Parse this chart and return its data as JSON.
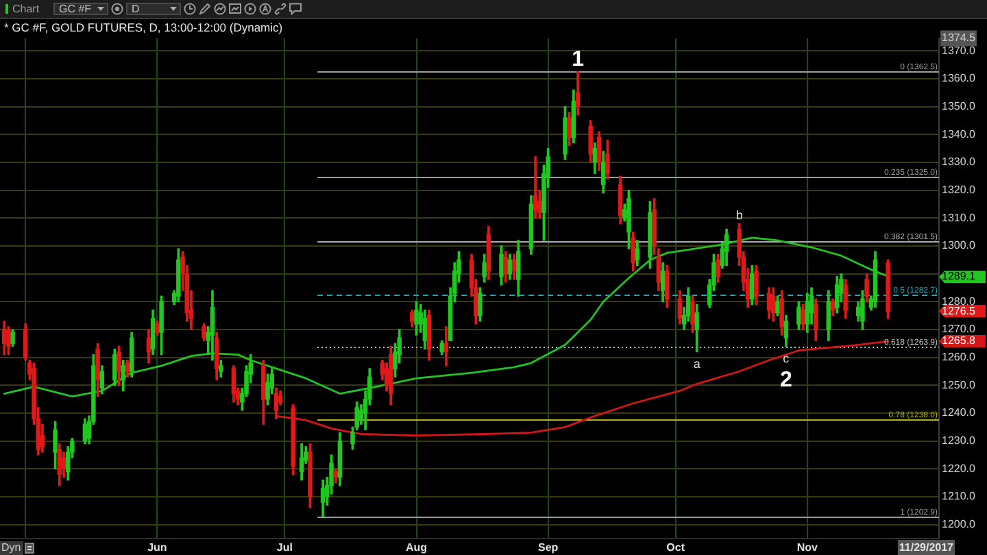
{
  "chart_data": {
    "type": "candlestick",
    "title": "* GC #F, GOLD FUTURES, D, 13:00-12:00 (Dynamic)",
    "x": [
      "2017-04-26",
      "2017-04-27",
      "2017-04-28",
      "2017-05-01",
      "2017-05-02",
      "2017-05-03",
      "2017-05-04",
      "2017-05-05",
      "2017-05-08",
      "2017-05-09",
      "2017-05-10",
      "2017-05-11",
      "2017-05-12",
      "2017-05-15",
      "2017-05-16",
      "2017-05-17",
      "2017-05-18",
      "2017-05-19",
      "2017-05-22",
      "2017-05-23",
      "2017-05-24",
      "2017-05-25",
      "2017-05-26",
      "2017-05-30",
      "2017-05-31",
      "2017-06-01",
      "2017-06-02",
      "2017-06-05",
      "2017-06-06",
      "2017-06-07",
      "2017-06-08",
      "2017-06-09",
      "2017-06-12",
      "2017-06-13",
      "2017-06-14",
      "2017-06-15",
      "2017-06-16",
      "2017-06-19",
      "2017-06-20",
      "2017-06-21",
      "2017-06-22",
      "2017-06-23",
      "2017-06-26",
      "2017-06-27",
      "2017-06-28",
      "2017-06-29",
      "2017-06-30",
      "2017-07-03",
      "2017-07-05",
      "2017-07-06",
      "2017-07-07",
      "2017-07-10",
      "2017-07-11",
      "2017-07-12",
      "2017-07-13",
      "2017-07-14",
      "2017-07-17",
      "2017-07-18",
      "2017-07-19",
      "2017-07-20",
      "2017-07-21",
      "2017-07-24",
      "2017-07-25",
      "2017-07-26",
      "2017-07-27",
      "2017-07-28",
      "2017-07-31",
      "2017-08-01",
      "2017-08-02",
      "2017-08-03",
      "2017-08-04",
      "2017-08-07",
      "2017-08-08",
      "2017-08-09",
      "2017-08-10",
      "2017-08-11",
      "2017-08-14",
      "2017-08-15",
      "2017-08-16",
      "2017-08-17",
      "2017-08-18",
      "2017-08-21",
      "2017-08-22",
      "2017-08-23",
      "2017-08-24",
      "2017-08-25",
      "2017-08-28",
      "2017-08-29",
      "2017-08-30",
      "2017-08-31",
      "2017-09-01",
      "2017-09-05",
      "2017-09-06",
      "2017-09-07",
      "2017-09-08",
      "2017-09-11",
      "2017-09-12",
      "2017-09-13",
      "2017-09-14",
      "2017-09-15",
      "2017-09-18",
      "2017-09-19",
      "2017-09-20",
      "2017-09-21",
      "2017-09-22",
      "2017-09-25",
      "2017-09-26",
      "2017-09-27",
      "2017-09-28",
      "2017-09-29",
      "2017-10-02",
      "2017-10-03",
      "2017-10-04",
      "2017-10-05",
      "2017-10-06",
      "2017-10-09",
      "2017-10-10",
      "2017-10-11",
      "2017-10-12",
      "2017-10-13",
      "2017-10-16",
      "2017-10-17",
      "2017-10-18",
      "2017-10-19",
      "2017-10-20",
      "2017-10-23",
      "2017-10-24",
      "2017-10-25",
      "2017-10-26",
      "2017-10-27",
      "2017-10-30",
      "2017-10-31",
      "2017-11-01",
      "2017-11-02",
      "2017-11-03",
      "2017-11-06",
      "2017-11-07",
      "2017-11-08",
      "2017-11-09",
      "2017-11-10",
      "2017-11-13",
      "2017-11-14",
      "2017-11-15",
      "2017-11-16",
      "2017-11-17",
      "2017-11-20"
    ],
    "series": [
      {
        "ohlc": [
          [
            1270,
            1273,
            1261,
            1265
          ],
          [
            1270,
            1271,
            1261,
            1264
          ],
          [
            1265,
            1270,
            1264,
            1269
          ],
          [
            1270,
            1272,
            1259,
            1260
          ],
          [
            1258,
            1259,
            1252,
            1254
          ],
          [
            1256,
            1258,
            1236,
            1238
          ],
          [
            1238,
            1242,
            1225,
            1227
          ],
          [
            1232,
            1236,
            1226,
            1228
          ],
          [
            1226,
            1237,
            1220,
            1234
          ],
          [
            1227,
            1229,
            1214,
            1218
          ],
          [
            1224,
            1226,
            1217,
            1220
          ],
          [
            1219,
            1228,
            1216,
            1226
          ],
          [
            1226,
            1231,
            1224,
            1230
          ],
          [
            1230,
            1238,
            1229,
            1236
          ],
          [
            1231,
            1239,
            1229,
            1237
          ],
          [
            1237,
            1261,
            1236,
            1257
          ],
          [
            1263,
            1265,
            1246,
            1252
          ],
          [
            1249,
            1257,
            1247,
            1255
          ],
          [
            1252,
            1263,
            1250,
            1261
          ],
          [
            1262,
            1264,
            1250,
            1255
          ],
          [
            1252,
            1259,
            1248,
            1257
          ],
          [
            1258,
            1259,
            1253,
            1255
          ],
          [
            1255,
            1269,
            1253,
            1267
          ],
          [
            1267,
            1270,
            1258,
            1262
          ],
          [
            1263,
            1277,
            1261,
            1274
          ],
          [
            1272,
            1273,
            1268,
            1269
          ],
          [
            1269,
            1282,
            1261,
            1280
          ],
          [
            1280,
            1284,
            1279,
            1283
          ],
          [
            1282,
            1299,
            1280,
            1295
          ],
          [
            1296,
            1298,
            1284,
            1290
          ],
          [
            1290,
            1293,
            1273,
            1276
          ],
          [
            1277,
            1284,
            1270,
            1274
          ],
          [
            1271,
            1272,
            1266,
            1267
          ],
          [
            1266,
            1271,
            1261,
            1269
          ],
          [
            1268,
            1284,
            1259,
            1278
          ],
          [
            1267,
            1269,
            1252,
            1256
          ],
          [
            1255,
            1259,
            1253,
            1257
          ],
          [
            1256,
            1257,
            1244,
            1247
          ],
          [
            1248,
            1249,
            1243,
            1245
          ],
          [
            1244,
            1249,
            1241,
            1247
          ],
          [
            1247,
            1257,
            1246,
            1255
          ],
          [
            1254,
            1261,
            1251,
            1258
          ],
          [
            1257,
            1259,
            1236,
            1245
          ],
          [
            1245,
            1254,
            1243,
            1251
          ],
          [
            1249,
            1256,
            1247,
            1254
          ],
          [
            1247,
            1249,
            1238,
            1241
          ],
          [
            1246,
            1248,
            1243,
            1244
          ],
          [
            1242,
            1243,
            1218,
            1221
          ],
          [
            1219,
            1229,
            1216,
            1224
          ],
          [
            1223,
            1228,
            1222,
            1226
          ],
          [
            1226,
            1229,
            1206,
            1210
          ],
          [
            1208,
            1216,
            1202.9,
            1213
          ],
          [
            1210,
            1217,
            1207,
            1214
          ],
          [
            1214,
            1225,
            1211,
            1222
          ],
          [
            1219,
            1220,
            1215,
            1217
          ],
          [
            1217,
            1233,
            1214,
            1230
          ],
          [
            1229,
            1235,
            1227,
            1233
          ],
          [
            1235,
            1244,
            1234,
            1242
          ],
          [
            1238,
            1243,
            1236,
            1241
          ],
          [
            1240,
            1248,
            1234,
            1245
          ],
          [
            1245,
            1256,
            1243,
            1253
          ],
          [
            1258,
            1259,
            1252,
            1254
          ],
          [
            1256,
            1258,
            1248,
            1250
          ],
          [
            1261,
            1264,
            1243,
            1247
          ],
          [
            1256,
            1265,
            1253,
            1262
          ],
          [
            1261,
            1270,
            1258,
            1267
          ],
          [
            1276,
            1277,
            1271,
            1273
          ],
          [
            1272,
            1280,
            1268,
            1277
          ],
          [
            1272,
            1279,
            1269,
            1276
          ],
          [
            1266,
            1277,
            1263,
            1274
          ],
          [
            1275,
            1277,
            1259,
            1263
          ],
          [
            1262,
            1266,
            1261,
            1265
          ],
          [
            1265,
            1271,
            1257,
            1262
          ],
          [
            1266,
            1285,
            1266,
            1282
          ],
          [
            1283,
            1294,
            1280,
            1291
          ],
          [
            1290,
            1298,
            1287,
            1295
          ],
          [
            1295,
            1297,
            1282,
            1285
          ],
          [
            1285,
            1288,
            1272,
            1275
          ],
          [
            1275,
            1285,
            1273,
            1283
          ],
          [
            1289,
            1297,
            1287,
            1294
          ],
          [
            1304,
            1307,
            1288,
            1291
          ],
          [
            1289,
            1300,
            1286,
            1297
          ],
          [
            1296,
            1298,
            1287,
            1290
          ],
          [
            1290,
            1297,
            1288,
            1295
          ],
          [
            1295,
            1297,
            1288,
            1291
          ],
          [
            1288,
            1302,
            1282,
            1298
          ],
          [
            1299,
            1318,
            1297,
            1315
          ],
          [
            1318,
            1332,
            1310,
            1313
          ],
          [
            1316,
            1320,
            1310,
            1312
          ],
          [
            1312,
            1329,
            1302,
            1326
          ],
          [
            1325,
            1335,
            1321,
            1332
          ],
          [
            1333,
            1350,
            1331,
            1346
          ],
          [
            1346,
            1348,
            1336,
            1339
          ],
          [
            1339,
            1356,
            1337,
            1352
          ],
          [
            1355,
            1362.5,
            1347,
            1350
          ],
          [
            1343,
            1345,
            1330,
            1333
          ],
          [
            1330,
            1337,
            1326,
            1335
          ],
          [
            1339,
            1341,
            1327,
            1330
          ],
          [
            1322,
            1334,
            1319,
            1330
          ],
          [
            1333,
            1338,
            1324,
            1326
          ],
          [
            1322,
            1325,
            1308,
            1311
          ],
          [
            1310,
            1315,
            1309,
            1313
          ],
          [
            1305,
            1320,
            1299,
            1317
          ],
          [
            1303,
            1305,
            1291,
            1294
          ],
          [
            1295,
            1302,
            1293,
            1299
          ],
          [
            1296,
            1316,
            1292,
            1312
          ],
          [
            1313,
            1317,
            1297,
            1300
          ],
          [
            1296,
            1299,
            1284,
            1287
          ],
          [
            1284,
            1294,
            1280,
            1291
          ],
          [
            1291,
            1293,
            1278,
            1281
          ],
          [
            1281,
            1284,
            1272,
            1274
          ],
          [
            1272,
            1278,
            1270,
            1275
          ],
          [
            1275,
            1285,
            1273,
            1282
          ],
          [
            1280,
            1282,
            1269,
            1272
          ],
          [
            1270,
            1279,
            1262,
            1276
          ],
          [
            1279,
            1288,
            1278,
            1286
          ],
          [
            1286,
            1297,
            1284,
            1294
          ],
          [
            1295,
            1297,
            1287,
            1289
          ],
          [
            1293,
            1301,
            1292,
            1299
          ],
          [
            1298,
            1306,
            1293,
            1304
          ],
          [
            1306,
            1308,
            1293,
            1296
          ],
          [
            1296,
            1298,
            1284,
            1287
          ],
          [
            1288,
            1292,
            1278,
            1281
          ],
          [
            1281,
            1293,
            1279,
            1290
          ],
          [
            1291,
            1293,
            1279,
            1282
          ],
          [
            1283,
            1285,
            1274,
            1277
          ],
          [
            1282,
            1285,
            1273,
            1276
          ],
          [
            1276,
            1282,
            1275,
            1280
          ],
          [
            1281,
            1284,
            1268,
            1271
          ],
          [
            1267,
            1275,
            1264,
            1273
          ],
          [
            1272,
            1280,
            1270,
            1278
          ],
          [
            1277,
            1279,
            1270,
            1272
          ],
          [
            1272,
            1283,
            1269,
            1280
          ],
          [
            1276,
            1285,
            1272,
            1282
          ],
          [
            1279,
            1281,
            1266,
            1270
          ],
          [
            1270,
            1284,
            1266,
            1280
          ],
          [
            1280,
            1281,
            1275,
            1277
          ],
          [
            1278,
            1289,
            1276,
            1286
          ],
          [
            1283,
            1290,
            1280,
            1288
          ],
          [
            1286,
            1288,
            1274,
            1277
          ],
          [
            1275,
            1280,
            1273,
            1278
          ],
          [
            1273,
            1284,
            1270,
            1281
          ],
          [
            1288,
            1290,
            1280,
            1282
          ],
          [
            1278,
            1282,
            1277,
            1281
          ],
          [
            1280,
            1298,
            1278,
            1295
          ],
          [
            1294,
            1295,
            1274,
            1276.5
          ]
        ],
        "colors": [
          "#e01818",
          "#e01818",
          "#1ec81e",
          "#e01818",
          "#e01818",
          "#e01818",
          "#e01818",
          "#e01818",
          "#1ec81e",
          "#e01818",
          "#e01818",
          "#1ec81e",
          "#1ec81e",
          "#1ec81e",
          "#1ec81e",
          "#1ec81e",
          "#e01818",
          "#1ec81e",
          "#1ec81e",
          "#e01818",
          "#1ec81e",
          "#e01818",
          "#1ec81e",
          "#e01818",
          "#1ec81e",
          "#e01818",
          "#1ec81e",
          "#1ec81e",
          "#1ec81e",
          "#e01818",
          "#e01818",
          "#e01818",
          "#e01818",
          "#1ec81e",
          "#1ec81e",
          "#e01818",
          "#1ec81e",
          "#e01818",
          "#e01818",
          "#1ec81e",
          "#1ec81e",
          "#1ec81e",
          "#e01818",
          "#1ec81e",
          "#1ec81e",
          "#e01818",
          "#e01818",
          "#e01818",
          "#1ec81e",
          "#1ec81e",
          "#e01818",
          "#1ec81e",
          "#1ec81e",
          "#1ec81e",
          "#e01818",
          "#1ec81e",
          "#1ec81e",
          "#1ec81e",
          "#1ec81e",
          "#1ec81e",
          "#1ec81e",
          "#e01818",
          "#e01818",
          "#e01818",
          "#1ec81e",
          "#1ec81e",
          "#e01818",
          "#1ec81e",
          "#1ec81e",
          "#1ec81e",
          "#e01818",
          "#1ec81e",
          "#e01818",
          "#1ec81e",
          "#1ec81e",
          "#1ec81e",
          "#e01818",
          "#e01818",
          "#1ec81e",
          "#1ec81e",
          "#e01818",
          "#1ec81e",
          "#e01818",
          "#1ec81e",
          "#e01818",
          "#1ec81e",
          "#1ec81e",
          "#e01818",
          "#e01818",
          "#1ec81e",
          "#1ec81e",
          "#1ec81e",
          "#e01818",
          "#1ec81e",
          "#e01818",
          "#e01818",
          "#1ec81e",
          "#e01818",
          "#1ec81e",
          "#e01818",
          "#e01818",
          "#1ec81e",
          "#1ec81e",
          "#e01818",
          "#1ec81e",
          "#1ec81e",
          "#e01818",
          "#e01818",
          "#1ec81e",
          "#e01818",
          "#e01818",
          "#1ec81e",
          "#1ec81e",
          "#e01818",
          "#1ec81e",
          "#1ec81e",
          "#1ec81e",
          "#e01818",
          "#1ec81e",
          "#1ec81e",
          "#e01818",
          "#e01818",
          "#e01818",
          "#1ec81e",
          "#e01818",
          "#e01818",
          "#e01818",
          "#1ec81e",
          "#e01818",
          "#1ec81e",
          "#1ec81e",
          "#e01818",
          "#1ec81e",
          "#1ec81e",
          "#e01818",
          "#1ec81e",
          "#e01818",
          "#1ec81e",
          "#1ec81e",
          "#e01818",
          "#1ec81e",
          "#1ec81e",
          "#e01818",
          "#1ec81e",
          "#1ec81e",
          "#e01818"
        ]
      },
      {
        "type": "line",
        "color": "#22c322",
        "x": [
          "2017-04-26",
          "2017-05-03",
          "2017-05-12",
          "2017-05-19",
          "2017-05-26",
          "2017-06-02",
          "2017-06-09",
          "2017-06-14",
          "2017-06-20",
          "2017-06-23",
          "2017-06-30",
          "2017-07-06",
          "2017-07-14",
          "2017-07-21",
          "2017-08-01",
          "2017-08-14",
          "2017-08-24",
          "2017-08-28",
          "2017-09-05",
          "2017-09-11",
          "2017-09-14",
          "2017-09-20",
          "2017-09-25",
          "2017-09-29",
          "2017-10-12",
          "2017-10-19",
          "2017-10-25",
          "2017-11-02",
          "2017-11-09",
          "2017-11-16",
          "2017-11-20"
        ],
        "values": [
          1247,
          1249.5,
          1246,
          1248,
          1254.5,
          1257,
          1260.5,
          1261.5,
          1261,
          1259,
          1255.5,
          1252.5,
          1247,
          1249,
          1252.5,
          1254.5,
          1256.5,
          1258,
          1264.5,
          1273.5,
          1280,
          1288.5,
          1295,
          1297.5,
          1300.5,
          1303,
          1302,
          1299.5,
          1296.5,
          1291.5,
          1289.1
        ]
      },
      {
        "type": "line",
        "color": "#d41616",
        "x": [
          "2017-06-29",
          "2017-07-06",
          "2017-07-12",
          "2017-07-19",
          "2017-08-01",
          "2017-08-17",
          "2017-08-28",
          "2017-09-05",
          "2017-09-12",
          "2017-09-14",
          "2017-09-21",
          "2017-10-02",
          "2017-10-06",
          "2017-10-16",
          "2017-10-23",
          "2017-10-30",
          "2017-11-06",
          "2017-11-13",
          "2017-11-20"
        ],
        "values": [
          1239,
          1237.5,
          1234.5,
          1232.5,
          1232,
          1232.5,
          1233,
          1235,
          1239,
          1240,
          1243.5,
          1248,
          1250.5,
          1255,
          1259,
          1262.5,
          1263.5,
          1264.5,
          1265.8
        ]
      }
    ],
    "xlim": [
      "2017-04-25",
      "2017-12-02"
    ],
    "xticks": [
      {
        "value": "2017-05-01",
        "label": null
      },
      {
        "value": "2017-06-01",
        "label": "Jun"
      },
      {
        "value": "2017-07-01",
        "label": "Jul"
      },
      {
        "value": "2017-08-01",
        "label": "Aug"
      },
      {
        "value": "2017-09-01",
        "label": "Sep"
      },
      {
        "value": "2017-10-01",
        "label": "Oct"
      },
      {
        "value": "2017-11-01",
        "label": "Nov"
      },
      {
        "value": "2017-11-29",
        "label": "11/29/2017"
      }
    ],
    "ylim": [
      1195,
      1374.5
    ],
    "yticks": [
      {
        "value": 1200,
        "label": "1200.0"
      },
      {
        "value": 1210,
        "label": "1210.0"
      },
      {
        "value": 1220,
        "label": "1220.0"
      },
      {
        "value": 1230,
        "label": "1230.0"
      },
      {
        "value": 1240,
        "label": "1240.0"
      },
      {
        "value": 1250,
        "label": "1250.0"
      },
      {
        "value": 1260,
        "label": "1260.0"
      },
      {
        "value": 1265.8,
        "label": "1265.8"
      },
      {
        "value": 1270,
        "label": "1270.0"
      },
      {
        "value": 1276.5,
        "label": "1276.5"
      },
      {
        "value": 1280,
        "label": "1280.0"
      },
      {
        "value": 1289.1,
        "label": "1289.1"
      },
      {
        "value": 1290,
        "label": null
      },
      {
        "value": 1300,
        "label": "1300.0"
      },
      {
        "value": 1310,
        "label": "1310.0"
      },
      {
        "value": 1320,
        "label": "1320.0"
      },
      {
        "value": 1330,
        "label": "1330.0"
      },
      {
        "value": 1340,
        "label": "1340.0"
      },
      {
        "value": 1350,
        "label": "1350.0"
      },
      {
        "value": 1360,
        "label": "1360.0"
      },
      {
        "value": 1370,
        "label": "1370.0"
      },
      {
        "value": 1374.5,
        "label": "1374.5"
      }
    ],
    "grid": true,
    "ref_lines": [
      {
        "axis": "y",
        "value": 1362.5,
        "label": "0 (1362.5)",
        "color": "#9c9c9c"
      },
      {
        "axis": "y",
        "value": 1325.0,
        "label": "0.235 (1325.0)",
        "color": "#9c9c9c"
      },
      {
        "axis": "y",
        "value": 1301.5,
        "label": "0.382 (1301.5)",
        "color": "#ababab"
      },
      {
        "axis": "y",
        "value": 1282.7,
        "label": "0.5 (1282.7)",
        "color": "#2aa3b3",
        "line_style": "dashed"
      },
      {
        "axis": "y",
        "value": 1263.9,
        "label": "0.618 (1263.9)",
        "color": "#c4c4c4",
        "line_style": "dotted"
      },
      {
        "axis": "y",
        "value": 1238.0,
        "label": "0.78 (1238.0)",
        "color": "#b0b020"
      },
      {
        "axis": "y",
        "value": 1202.9,
        "label": "1 (1202.9)",
        "color": "#9c9c9c"
      }
    ],
    "annotations": [
      "Chart",
      "GC #F",
      "D",
      "Dyn",
      {
        "text": "1",
        "x": "2017-09-08",
        "y": 1362.5
      },
      {
        "text": "a",
        "x": "2017-10-06",
        "y": 1262
      },
      {
        "text": "b",
        "x": "2017-10-16",
        "y": 1308
      },
      {
        "text": "c",
        "x": "2017-10-27",
        "y": 1264
      },
      {
        "text": "2",
        "x": "2017-10-27",
        "y": 1264
      }
    ]
  }
}
